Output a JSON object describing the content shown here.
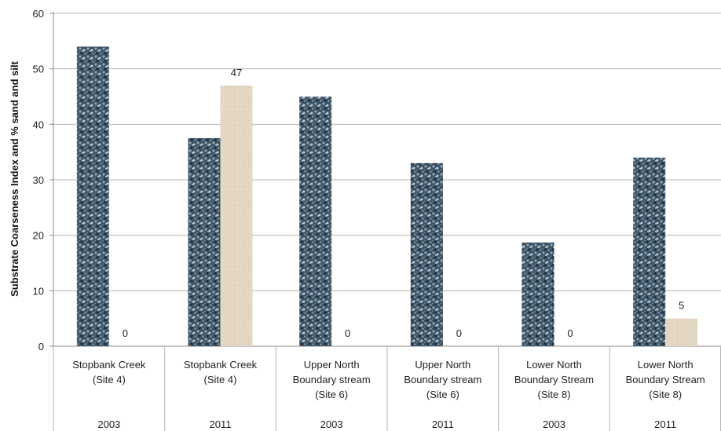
{
  "chart_data": {
    "type": "bar",
    "ylabel": "Substrate  Coarseness Index and % sand and silt",
    "xlabel": "",
    "ylim": [
      0,
      60
    ],
    "yticks": [
      0,
      10,
      20,
      30,
      40,
      50,
      60
    ],
    "grid": true,
    "categories": [
      {
        "site": [
          "Stopbank Creek",
          "(Site 4)"
        ],
        "year": "2003"
      },
      {
        "site": [
          "Stopbank Creek",
          "(Site 4)"
        ],
        "year": "2011"
      },
      {
        "site": [
          "Upper North",
          "Boundary stream",
          "(Site 6)"
        ],
        "year": "2003"
      },
      {
        "site": [
          "Upper North",
          "Boundary stream",
          "(Site 6)"
        ],
        "year": "2011"
      },
      {
        "site": [
          "Lower North",
          "Boundary Stream",
          "(Site 8)"
        ],
        "year": "2003"
      },
      {
        "site": [
          "Lower North",
          "Boundary Stream",
          "(Site 8)"
        ],
        "year": "2011"
      }
    ],
    "series": [
      {
        "values": [
          54,
          37.5,
          45,
          33,
          18.7,
          34
        ],
        "color": "#3e5366",
        "pattern": "pebbles",
        "data_labels": false
      },
      {
        "values": [
          0,
          47,
          0,
          0,
          0,
          5
        ],
        "color": "#e3d6c3",
        "pattern": "sand",
        "data_labels": true
      }
    ]
  }
}
